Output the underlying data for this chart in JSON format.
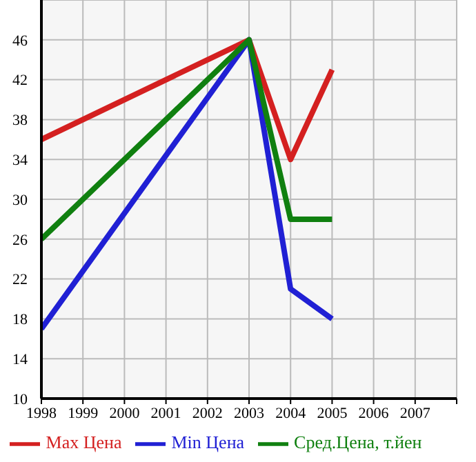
{
  "chart_data": {
    "type": "line",
    "x": [
      1998,
      2003,
      2004,
      2005
    ],
    "series": [
      {
        "name": "Max Цена",
        "color": "#d42020",
        "values": [
          36,
          46,
          34,
          43
        ]
      },
      {
        "name": "Min Цена",
        "color": "#2020d4",
        "values": [
          17,
          46,
          21,
          18
        ]
      },
      {
        "name": "Сред.Цена, т.йен",
        "color": "#108010",
        "values": [
          26,
          46,
          28,
          28
        ]
      }
    ],
    "xlim": [
      1998,
      2008
    ],
    "xticks": [
      1998,
      1999,
      2000,
      2001,
      2002,
      2003,
      2004,
      2005,
      2006,
      2007,
      {
        "value": 2008,
        "label": null
      }
    ],
    "ylim": [
      10,
      50
    ],
    "yticks": [
      10,
      14,
      18,
      22,
      26,
      30,
      34,
      38,
      42,
      46
    ],
    "grid": true,
    "legend": "bottom",
    "marker": "none",
    "line_style": "solid"
  }
}
